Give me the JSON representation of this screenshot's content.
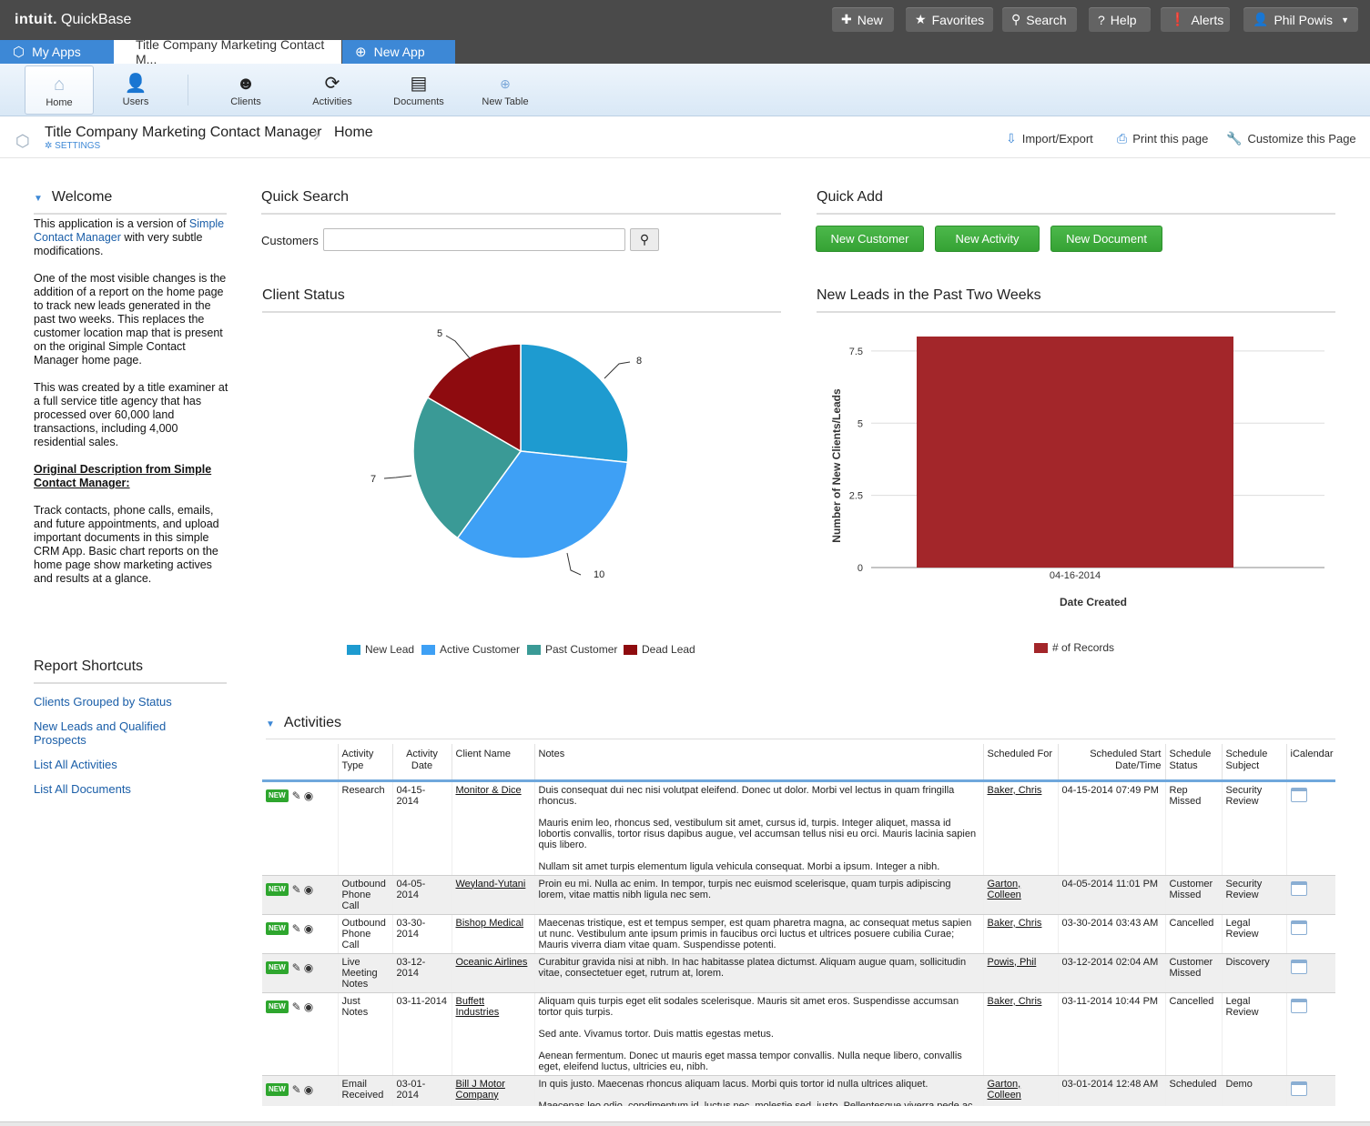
{
  "header": {
    "brand_bold": "intuit.",
    "brand_name": "QuickBase",
    "buttons": {
      "new": "New",
      "favorites": "Favorites",
      "search": "Search",
      "help": "Help",
      "alerts": "Alerts",
      "user": "Phil Powis"
    }
  },
  "tabs": {
    "my_apps": "My Apps",
    "active": "Title Company Marketing Contact M...",
    "new_app": "New App"
  },
  "nav": {
    "items": [
      {
        "label": "Home",
        "icon": "home-icon"
      },
      {
        "label": "Users",
        "icon": "user-icon"
      },
      {
        "label": "Clients",
        "icon": "smiley-icon"
      },
      {
        "label": "Activities",
        "icon": "activity-icon"
      },
      {
        "label": "Documents",
        "icon": "documents-icon"
      },
      {
        "label": "New Table",
        "icon": "plus-icon"
      }
    ]
  },
  "breadcrumb": {
    "app_title": "Title Company Marketing Contact Manager",
    "settings": "SETTINGS",
    "page": "Home",
    "actions": {
      "import_export": "Import/Export",
      "print": "Print this page",
      "customize": "Customize this Page"
    }
  },
  "welcome": {
    "heading": "Welcome",
    "p1_prefix": "This application is a version of ",
    "p1_link": "Simple Contact Manager",
    "p1_suffix": " with very subtle modifications.",
    "p2": "One of the most visible changes is the addition of a report on the home page to track new leads generated in the past two weeks. This replaces the customer location map that is present on the original Simple Contact Manager home page.",
    "p3": "This was created by a title examiner at a full service title agency that has processed over 60,000 land transactions, including 4,000 residential sales.",
    "p4": "Original Description from Simple Contact Manager:",
    "p5": "Track contacts, phone calls, emails, and future appointments, and upload important documents in this simple CRM App. Basic chart reports on the home page show marketing actives and results at a glance."
  },
  "shortcuts": {
    "heading": "Report Shortcuts",
    "items": [
      "Clients Grouped by Status",
      "New Leads and Qualified Prospects",
      "List All Activities",
      "List All Documents"
    ]
  },
  "quick_search": {
    "heading": "Quick Search",
    "label": "Customers",
    "value": "",
    "placeholder": ""
  },
  "quick_add": {
    "heading": "Quick Add",
    "buttons": [
      "New Customer",
      "New Activity",
      "New Document"
    ]
  },
  "client_status": {
    "heading": "Client Status"
  },
  "new_leads": {
    "heading": "New Leads in the Past Two Weeks"
  },
  "chart_data": [
    {
      "type": "pie",
      "categories": [
        "New Lead",
        "Active Customer",
        "Past Customer",
        "Dead Lead"
      ],
      "values": [
        8,
        10,
        7,
        5
      ],
      "colors": [
        "#1e9bd0",
        "#3ea0f5",
        "#3a9a96",
        "#8e0b0f"
      ],
      "legend": "bottom"
    },
    {
      "type": "bar",
      "categories": [
        "04-16-2014"
      ],
      "series": [
        {
          "name": "# of Records",
          "values": [
            8
          ]
        }
      ],
      "xlabel": "Date Created",
      "ylabel": "Number of New Clients/Leads",
      "ylim": [
        0,
        8
      ],
      "yticks": [
        "0",
        "2.5",
        "5",
        "7.5"
      ],
      "color": "#a3262a",
      "grid": true,
      "legend": "bottom"
    }
  ],
  "activities": {
    "heading": "Activities",
    "columns": [
      "",
      "Activity Type",
      "Activity Date",
      "Client Name",
      "Notes",
      "Scheduled For",
      "Scheduled Start Date/Time",
      "Schedule Status",
      "Schedule Subject",
      "iCalendar"
    ],
    "badge": "NEW",
    "rows": [
      {
        "type": "Research",
        "date": "04-15-2014",
        "client": "Monitor & Dice",
        "notes": [
          "Duis consequat dui nec nisi volutpat eleifend. Donec ut dolor. Morbi vel lectus in quam fringilla rhoncus.",
          "Mauris enim leo, rhoncus sed, vestibulum sit amet, cursus id, turpis. Integer aliquet, massa id lobortis convallis, tortor risus dapibus augue, vel accumsan tellus nisi eu orci. Mauris lacinia sapien quis libero.",
          "Nullam sit amet turpis elementum ligula vehicula consequat. Morbi a ipsum. Integer a nibh."
        ],
        "scheduled_for": "Baker, Chris",
        "start": "04-15-2014 07:49 PM",
        "status": "Rep Missed",
        "subject": "Security Review"
      },
      {
        "type": "Outbound Phone Call",
        "date": "04-05-2014",
        "client": "Weyland-Yutani",
        "notes": [
          "Proin eu mi. Nulla ac enim. In tempor, turpis nec euismod scelerisque, quam turpis adipiscing lorem, vitae mattis nibh ligula nec sem."
        ],
        "scheduled_for": "Garton, Colleen",
        "start": "04-05-2014 11:01 PM",
        "status": "Customer Missed",
        "subject": "Security Review"
      },
      {
        "type": "Outbound Phone Call",
        "date": "03-30-2014",
        "client": "Bishop Medical",
        "notes": [
          "Maecenas tristique, est et tempus semper, est quam pharetra magna, ac consequat metus sapien ut nunc. Vestibulum ante ipsum primis in faucibus orci luctus et ultrices posuere cubilia Curae; Mauris viverra diam vitae quam. Suspendisse potenti."
        ],
        "scheduled_for": "Baker, Chris",
        "start": "03-30-2014 03:43 AM",
        "status": "Cancelled",
        "subject": "Legal Review"
      },
      {
        "type": "Live Meeting Notes",
        "date": "03-12-2014",
        "client": "Oceanic Airlines",
        "notes": [
          "Curabitur gravida nisi at nibh. In hac habitasse platea dictumst. Aliquam augue quam, sollicitudin vitae, consectetuer eget, rutrum at, lorem."
        ],
        "scheduled_for": "Powis, Phil",
        "start": "03-12-2014 02:04 AM",
        "status": "Customer Missed",
        "subject": "Discovery"
      },
      {
        "type": "Just Notes",
        "date": "03-11-2014",
        "client": "Buffett Industries",
        "notes": [
          "Aliquam quis turpis eget elit sodales scelerisque. Mauris sit amet eros. Suspendisse accumsan tortor quis turpis.",
          "Sed ante. Vivamus tortor. Duis mattis egestas metus.",
          "Aenean fermentum. Donec ut mauris eget massa tempor convallis. Nulla neque libero, convallis eget, eleifend luctus, ultricies eu, nibh."
        ],
        "scheduled_for": "Baker, Chris",
        "start": "03-11-2014 10:44 PM",
        "status": "Cancelled",
        "subject": "Legal Review"
      },
      {
        "type": "Email Received",
        "date": "03-01-2014",
        "client": "Bill J Motor Company",
        "notes": [
          "In quis justo. Maecenas rhoncus aliquam lacus. Morbi quis tortor id nulla ultrices aliquet.",
          "Maecenas leo odio, condimentum id, luctus nec, molestie sed, justo. Pellentesque viverra pede ac diam. Cras pellentesque volutpat dui."
        ],
        "scheduled_for": "Garton, Colleen",
        "start": "03-01-2014 12:48 AM",
        "status": "Scheduled",
        "subject": "Demo"
      }
    ]
  }
}
